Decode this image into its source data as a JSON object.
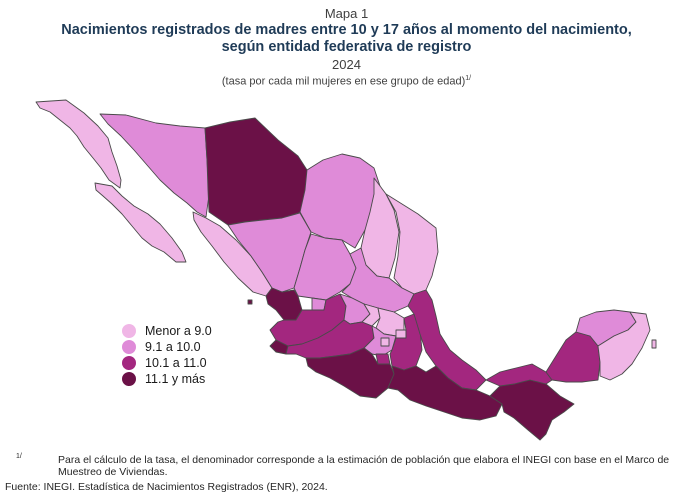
{
  "header": {
    "label": "Mapa 1",
    "title": "Nacimientos registrados de madres entre 10 y 17 años al momento del nacimiento, según entidad federativa de registro",
    "year": "2024",
    "unit": "(tasa por cada mil mujeres en ese grupo de edad)",
    "unit_note_mark": "1/"
  },
  "legend": {
    "items": [
      {
        "label": "Menor a 9.0",
        "color": "#f0b6e6"
      },
      {
        "label": "9.1 a 10.0",
        "color": "#df8bd8"
      },
      {
        "label": "10.1 a 11.0",
        "color": "#a3277f"
      },
      {
        "label": "11.1 y más",
        "color": "#6b1147"
      }
    ]
  },
  "map": {
    "border_color": "#4a4a4a",
    "regions": [
      {
        "name": "Baja California",
        "class": "Menor a 9.0"
      },
      {
        "name": "Baja California Sur",
        "class": "Menor a 9.0"
      },
      {
        "name": "Sonora",
        "class": "9.1 a 10.0"
      },
      {
        "name": "Chihuahua",
        "class": "11.1 y más"
      },
      {
        "name": "Coahuila",
        "class": "9.1 a 10.0"
      },
      {
        "name": "Nuevo León",
        "class": "Menor a 9.0"
      },
      {
        "name": "Tamaulipas",
        "class": "Menor a 9.0"
      },
      {
        "name": "Sinaloa",
        "class": "Menor a 9.0"
      },
      {
        "name": "Durango",
        "class": "9.1 a 10.0"
      },
      {
        "name": "Nayarit",
        "class": "11.1 y más"
      },
      {
        "name": "Jalisco",
        "class": "10.1 a 11.0"
      },
      {
        "name": "Michoacán",
        "class": "10.1 a 11.0"
      },
      {
        "name": "Guerrero",
        "class": "11.1 y más"
      },
      {
        "name": "Oaxaca",
        "class": "11.1 y más"
      },
      {
        "name": "Chiapas",
        "class": "11.1 y más"
      },
      {
        "name": "Veracruz",
        "class": "10.1 a 11.0"
      },
      {
        "name": "Tabasco",
        "class": "10.1 a 11.0"
      },
      {
        "name": "Campeche",
        "class": "10.1 a 11.0"
      },
      {
        "name": "Yucatán",
        "class": "9.1 a 10.0"
      },
      {
        "name": "Quintana Roo",
        "class": "Menor a 9.0"
      },
      {
        "name": "Puebla",
        "class": "10.1 a 11.0"
      },
      {
        "name": "Zacatecas",
        "class": "9.1 a 10.0"
      },
      {
        "name": "San Luis Potosí",
        "class": "9.1 a 10.0"
      },
      {
        "name": "Guanajuato",
        "class": "9.1 a 10.0"
      },
      {
        "name": "Querétaro",
        "class": "Menor a 9.0"
      },
      {
        "name": "Hidalgo",
        "class": "Menor a 9.0"
      },
      {
        "name": "Colima",
        "class": "11.1 y más"
      },
      {
        "name": "Ciudad de México",
        "class": "Menor a 9.0"
      }
    ]
  },
  "footnote": {
    "mark": "1/",
    "text": "Para el cálculo de la tasa, el denominador corresponde a la estimación de población que elabora el INEGI con base en el Marco de Muestreo de Viviendas."
  },
  "source": {
    "text": "Fuente: INEGI. Estadística de Nacimientos Registrados (ENR), 2024."
  }
}
